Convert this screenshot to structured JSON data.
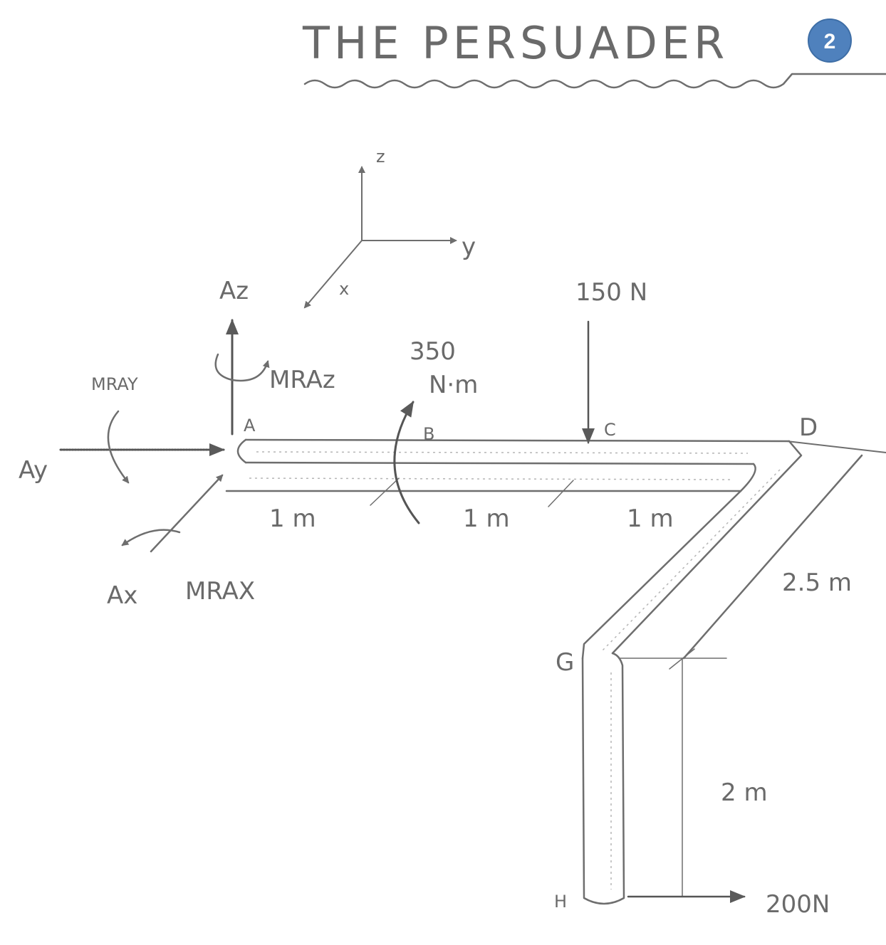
{
  "title": "THE PERSUADER",
  "page_badge": "2",
  "axes": {
    "z": "z",
    "y": "y",
    "x": "x"
  },
  "points": {
    "A": "A",
    "B": "B",
    "C": "C",
    "D": "D",
    "G": "G",
    "H": "H"
  },
  "reactions": {
    "Az": "Az",
    "Ay": "Ay",
    "Ax": "Ax",
    "MRAz": "MRAz",
    "MRAy": "MRAY",
    "MRAx": "MRAX"
  },
  "loads": {
    "force_C": "150 N",
    "couple_B_value": "350",
    "couple_B_unit": "N·m",
    "force_H": "200N"
  },
  "dimensions": {
    "AB": "1 m",
    "BC": "1 m",
    "CD": "1 m",
    "DG": "2.5 m",
    "GH": "2 m"
  },
  "colors": {
    "badge": "#4f81bd",
    "ink": "#6e6e6e"
  }
}
